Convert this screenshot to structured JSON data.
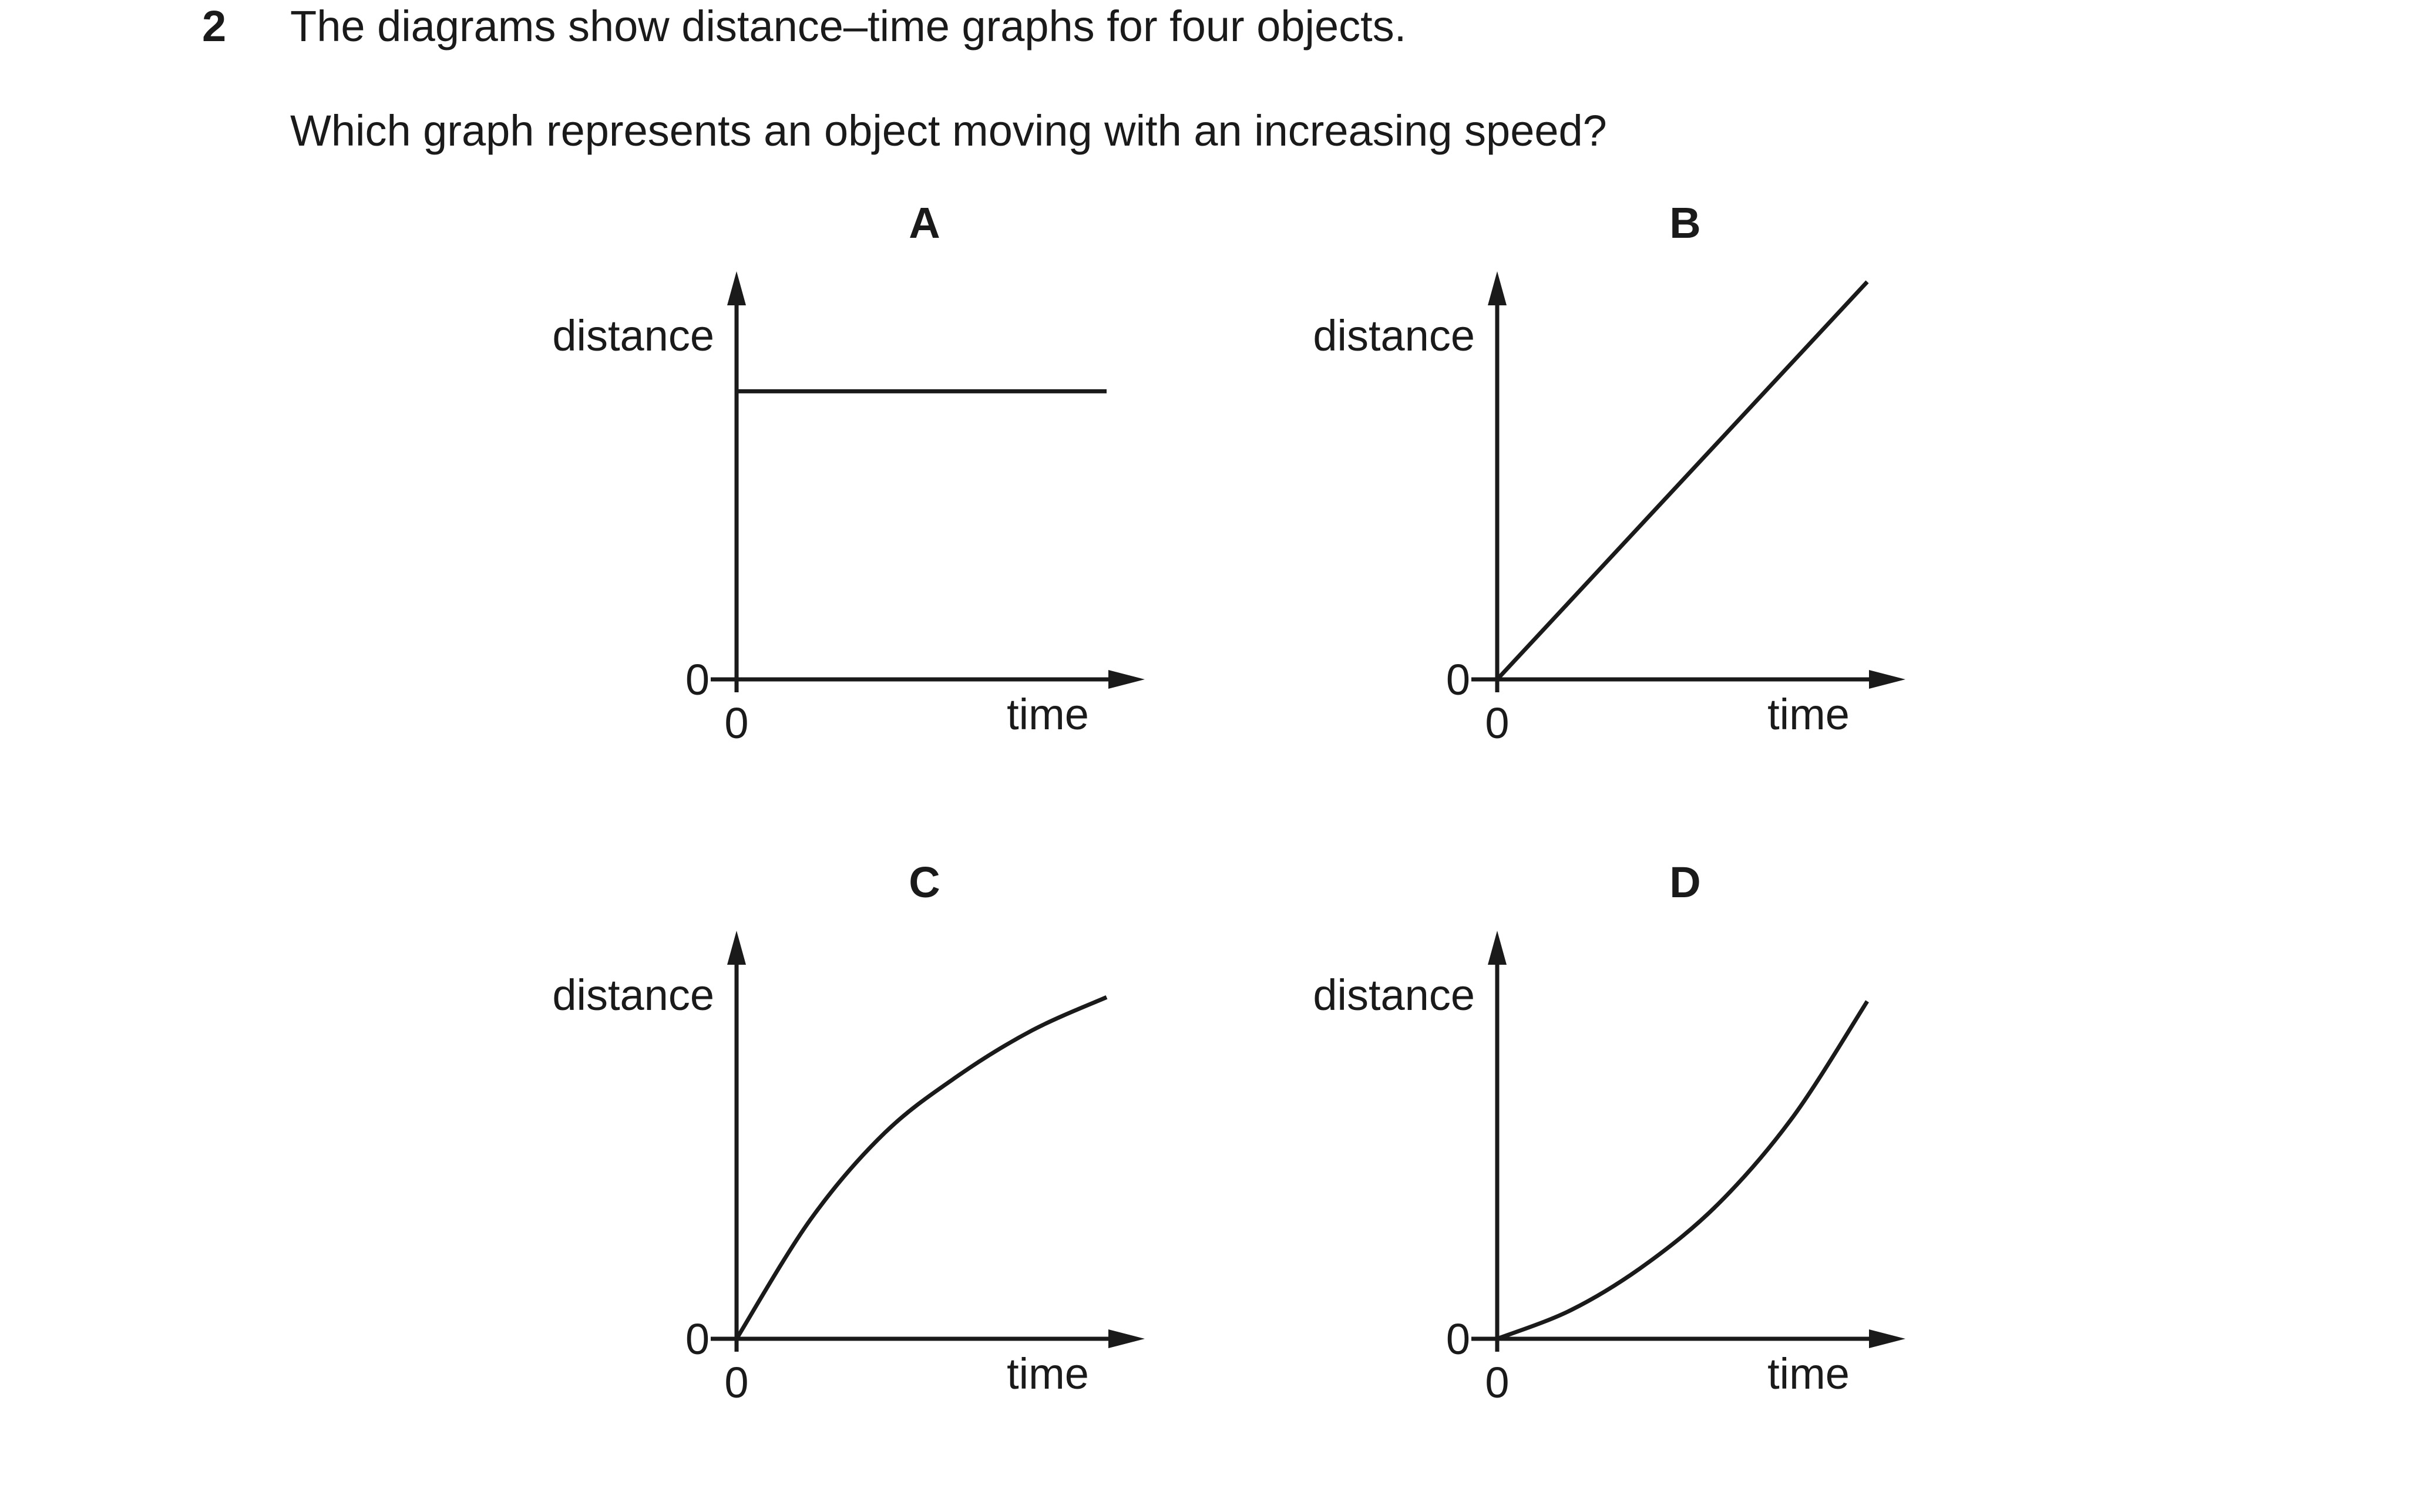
{
  "question": {
    "number": "2",
    "line1": "The diagrams show distance–time graphs for four objects.",
    "line2": "Which graph represents an object moving with an increasing speed?"
  },
  "chart_data": [
    {
      "type": "line",
      "panel": "A",
      "title": "A",
      "xlabel": "time",
      "ylabel": "distance",
      "x_origin_label": "0",
      "y_origin_label": "0",
      "curve": "horizontal",
      "x": [
        0,
        0.2,
        0.4,
        0.6,
        0.8,
        1.0
      ],
      "y": [
        0.7,
        0.7,
        0.7,
        0.7,
        0.7,
        0.7
      ],
      "xlim": [
        0,
        1.08
      ],
      "ylim": [
        0,
        1.0
      ]
    },
    {
      "type": "line",
      "panel": "B",
      "title": "B",
      "xlabel": "time",
      "ylabel": "distance",
      "x_origin_label": "0",
      "y_origin_label": "0",
      "curve": "straight",
      "x": [
        0,
        0.2,
        0.4,
        0.6,
        0.8,
        1.0
      ],
      "y": [
        0,
        0.193,
        0.386,
        0.58,
        0.773,
        0.966
      ],
      "xlim": [
        0,
        1.08
      ],
      "ylim": [
        0,
        1.0
      ]
    },
    {
      "type": "line",
      "panel": "C",
      "title": "C",
      "xlabel": "time",
      "ylabel": "distance",
      "x_origin_label": "0",
      "y_origin_label": "0",
      "curve": "concave-down",
      "x": [
        0,
        0.2,
        0.4,
        0.6,
        0.8,
        1.0
      ],
      "y": [
        0,
        0.29,
        0.5,
        0.64,
        0.75,
        0.83
      ],
      "xlim": [
        0,
        1.08
      ],
      "ylim": [
        0,
        1.0
      ]
    },
    {
      "type": "line",
      "panel": "D",
      "title": "D",
      "xlabel": "time",
      "ylabel": "distance",
      "x_origin_label": "0",
      "y_origin_label": "0",
      "curve": "concave-up",
      "x": [
        0,
        0.2,
        0.4,
        0.6,
        0.8,
        1.0
      ],
      "y": [
        0,
        0.07,
        0.18,
        0.33,
        0.54,
        0.82
      ],
      "xlim": [
        0,
        1.08
      ],
      "ylim": [
        0,
        1.0
      ]
    }
  ]
}
